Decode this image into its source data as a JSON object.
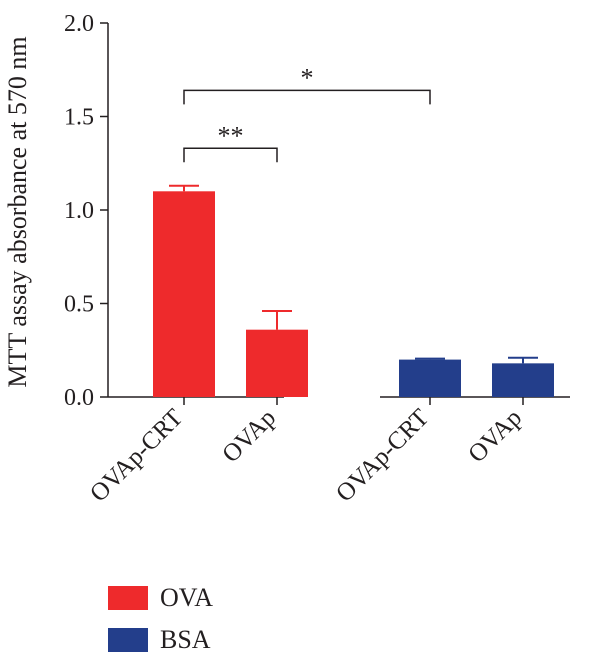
{
  "chart_data": {
    "type": "bar",
    "ylabel": "MTT assay absorbance at 570 nm",
    "xlabel": "",
    "title": "",
    "ylim": [
      0,
      2.0
    ],
    "yticks": [
      "0.0",
      "0.5",
      "1.0",
      "1.5",
      "2.0"
    ],
    "categories": [
      "OVAp-CRT",
      "OVAp",
      "OVAp-CRT",
      "OVAp"
    ],
    "series": [
      {
        "name": "OVA",
        "color": "#ee2a2c",
        "values": [
          1.1,
          0.36,
          null,
          null
        ],
        "errors": [
          0.03,
          0.1,
          null,
          null
        ]
      },
      {
        "name": "BSA",
        "color": "#233e8b",
        "values": [
          null,
          null,
          0.2,
          0.18
        ],
        "errors": [
          null,
          null,
          0.005,
          0.03
        ]
      }
    ],
    "annotations": [
      {
        "label": "**",
        "from": 0,
        "to": 1,
        "y": 1.33
      },
      {
        "label": "*",
        "from": 0,
        "to": 2,
        "y": 1.64
      }
    ],
    "legend": {
      "placement": "bottom-left"
    }
  }
}
